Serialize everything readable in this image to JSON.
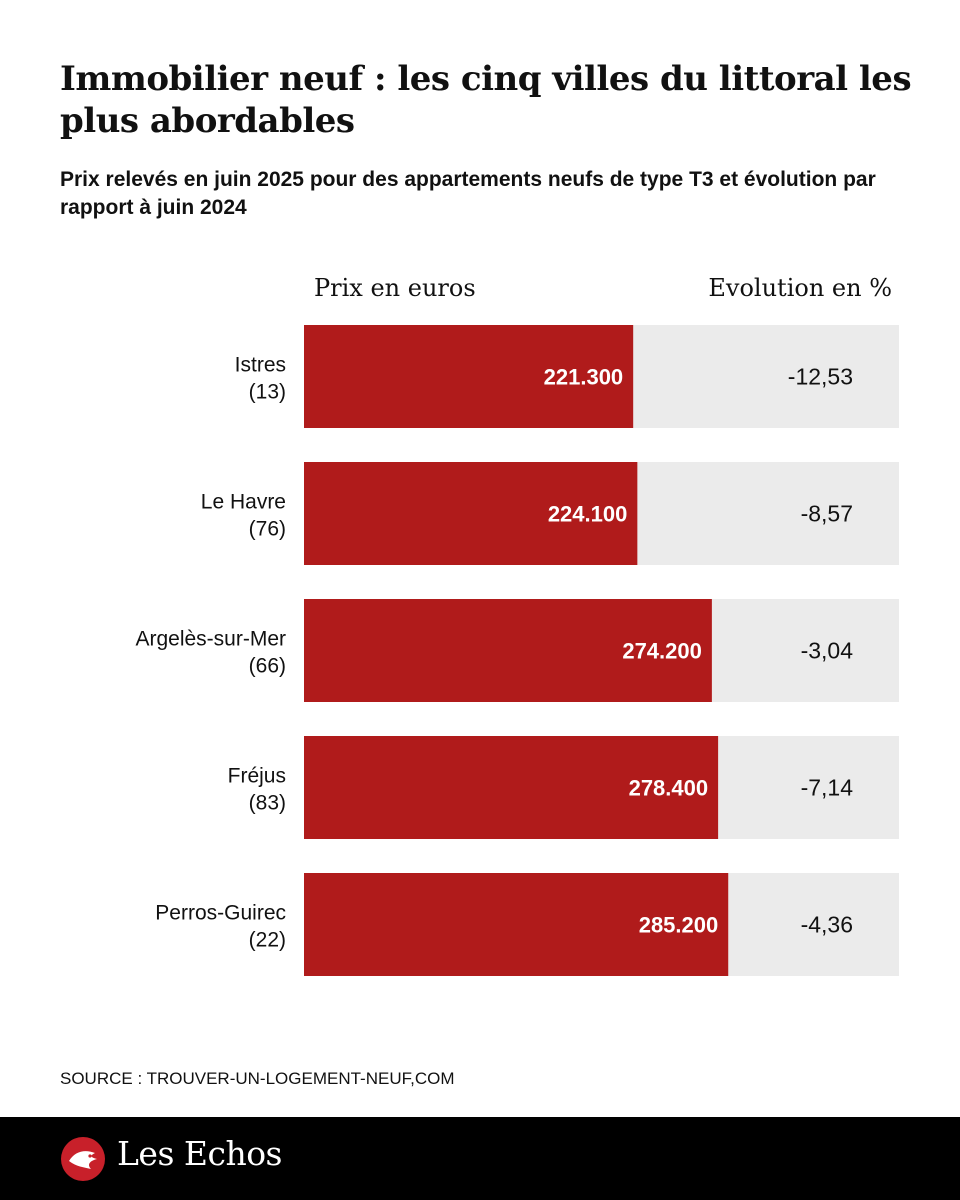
{
  "title": "Immobilier neuf : les cinq villes du littoral les plus abordables",
  "subtitle": "Prix relevés en juin 2025 pour des appartements neufs de type T3 et évolution par rapport à juin 2024",
  "source": "SOURCE : TROUVER-UN-LOGEMENT-NEUF,COM",
  "brand": {
    "name": "Les Echos"
  },
  "colors": {
    "bar": "#b01b1b",
    "track": "#ebebeb",
    "logo_red": "#c8202a"
  },
  "chart_data": {
    "type": "bar",
    "orientation": "horizontal",
    "price_label": "Prix en euros",
    "evolution_label": "Evolution en %",
    "price_max": 400000,
    "rows": [
      {
        "city": "Istres",
        "dept": "(13)",
        "price": 221300,
        "price_label": "221.300",
        "evolution": -12.53,
        "evolution_label": "-12,53"
      },
      {
        "city": "Le Havre",
        "dept": "(76)",
        "price": 224100,
        "price_label": "224.100",
        "evolution": -8.57,
        "evolution_label": "-8,57"
      },
      {
        "city": "Argelès-sur-Mer",
        "dept": "(66)",
        "price": 274200,
        "price_label": "274.200",
        "evolution": -3.04,
        "evolution_label": "-3,04"
      },
      {
        "city": "Fréjus",
        "dept": "(83)",
        "price": 278400,
        "price_label": "278.400",
        "evolution": -7.14,
        "evolution_label": "-7,14"
      },
      {
        "city": "Perros-Guirec",
        "dept": "(22)",
        "price": 285200,
        "price_label": "285.200",
        "evolution": -4.36,
        "evolution_label": "-4,36"
      }
    ]
  }
}
